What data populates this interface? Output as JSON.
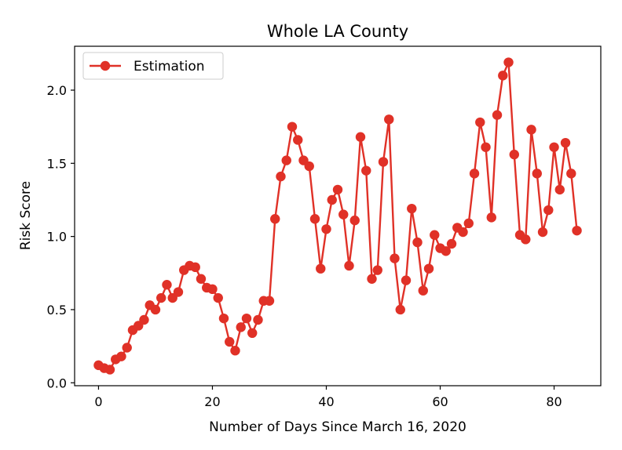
{
  "chart_data": {
    "type": "line",
    "title": "Whole LA County",
    "xlabel": "Number of Days Since March 16, 2020",
    "ylabel": "Risk Score",
    "xlim": [
      -4.2,
      88.2
    ],
    "ylim": [
      -0.02,
      2.3
    ],
    "x_ticks": [
      0,
      20,
      40,
      60,
      80
    ],
    "x_tick_labels": [
      "0",
      "20",
      "40",
      "60",
      "80"
    ],
    "y_ticks": [
      0.0,
      0.5,
      1.0,
      1.5,
      2.0
    ],
    "y_tick_labels": [
      "0.0",
      "0.5",
      "1.0",
      "1.5",
      "2.0"
    ],
    "grid": false,
    "legend": {
      "position": "top-left",
      "entries": [
        "Estimation"
      ]
    },
    "series": [
      {
        "name": "Estimation",
        "color": "#e03127",
        "marker": "circle",
        "x": [
          0,
          1,
          2,
          3,
          4,
          5,
          6,
          7,
          8,
          9,
          10,
          11,
          12,
          13,
          14,
          15,
          16,
          17,
          18,
          19,
          20,
          21,
          22,
          23,
          24,
          25,
          26,
          27,
          28,
          29,
          30,
          31,
          32,
          33,
          34,
          35,
          36,
          37,
          38,
          39,
          40,
          41,
          42,
          43,
          44,
          45,
          46,
          47,
          48,
          49,
          50,
          51,
          52,
          53,
          54,
          55,
          56,
          57,
          58,
          59,
          60,
          61,
          62,
          63,
          64,
          65,
          66,
          67,
          68,
          69,
          70,
          71,
          72,
          73,
          74,
          75,
          76,
          77,
          78,
          79,
          80,
          81,
          82,
          83,
          84
        ],
        "y": [
          0.12,
          0.1,
          0.09,
          0.16,
          0.18,
          0.24,
          0.36,
          0.39,
          0.43,
          0.53,
          0.5,
          0.58,
          0.67,
          0.58,
          0.62,
          0.77,
          0.8,
          0.79,
          0.71,
          0.65,
          0.64,
          0.58,
          0.44,
          0.28,
          0.22,
          0.38,
          0.44,
          0.34,
          0.43,
          0.56,
          0.56,
          1.12,
          1.41,
          1.52,
          1.75,
          1.66,
          1.52,
          1.48,
          1.12,
          0.78,
          1.05,
          1.25,
          1.32,
          1.15,
          0.8,
          1.11,
          1.68,
          1.45,
          0.71,
          0.77,
          1.51,
          1.8,
          0.85,
          0.5,
          0.7,
          1.19,
          0.96,
          0.63,
          0.78,
          1.01,
          0.92,
          0.9,
          0.95,
          1.06,
          1.03,
          1.09,
          1.43,
          1.78,
          1.61,
          1.13,
          1.83,
          2.1,
          2.19,
          1.56,
          1.01,
          0.98,
          1.73,
          1.43,
          1.03,
          1.18,
          1.61,
          1.32,
          1.64,
          1.43,
          1.04
        ]
      }
    ]
  }
}
